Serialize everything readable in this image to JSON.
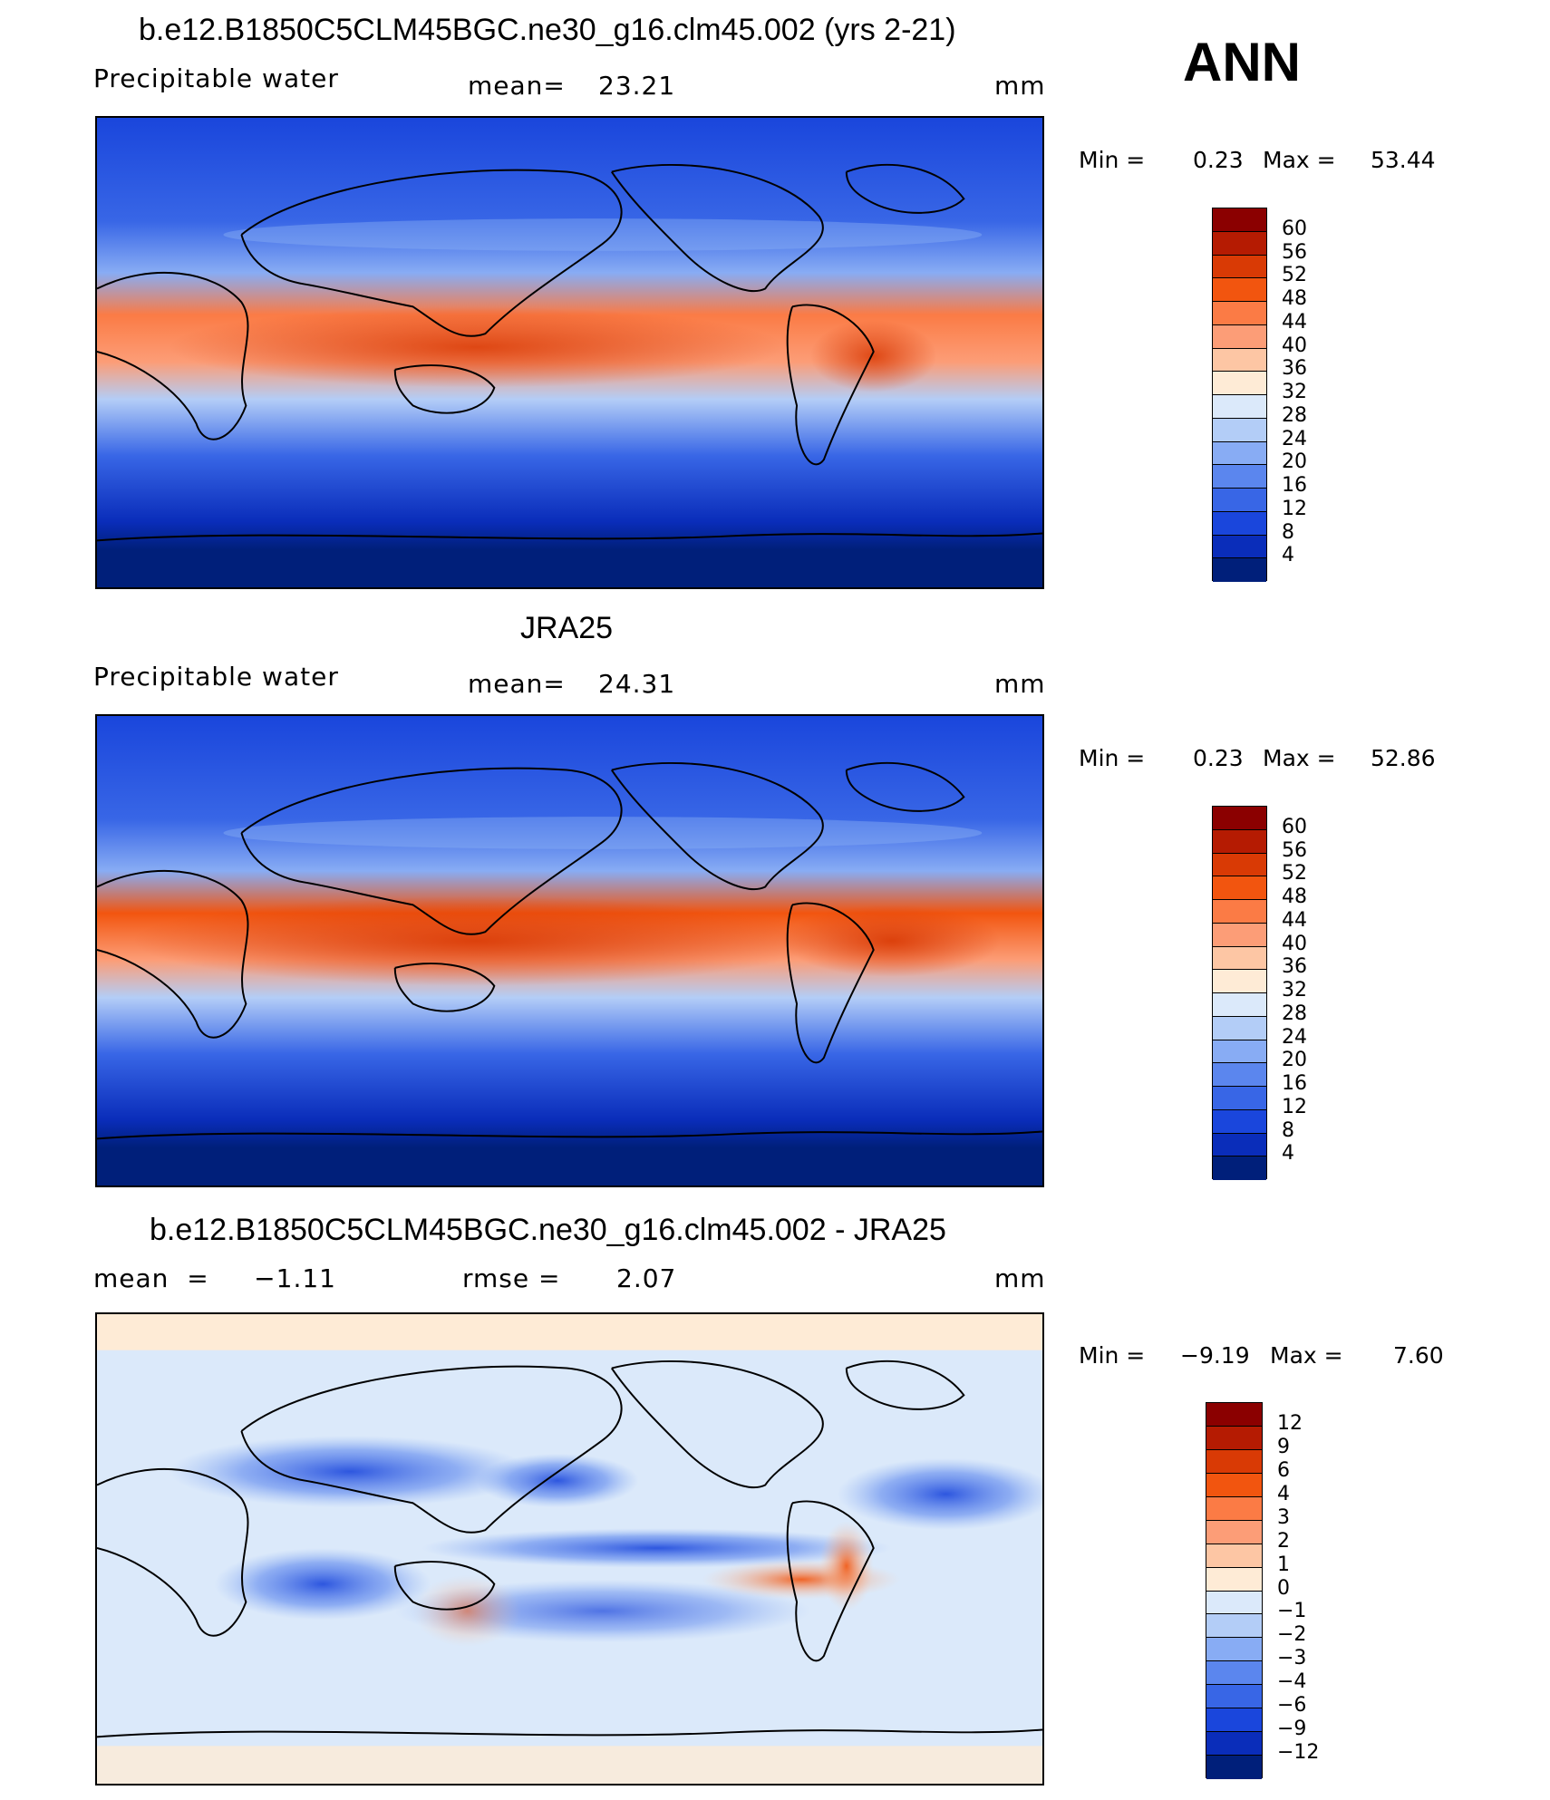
{
  "season": "ANN",
  "panels": [
    {
      "title": "b.e12.B1850C5CLM45BGC.ne30_g16.clm45.002 (yrs 2-21)",
      "left_label": "Precipitable  water",
      "mid_label": "mean=",
      "mid_value": "23.21",
      "unit": "mm",
      "min_label": "Min  =",
      "min_value": "0.23",
      "max_label": "Max  =",
      "max_value": "53.44",
      "colorbar_labels": [
        "60",
        "56",
        "52",
        "48",
        "44",
        "40",
        "36",
        "32",
        "28",
        "24",
        "20",
        "16",
        "12",
        "8",
        "4"
      ],
      "colorbar_colors": [
        "#8b0000",
        "#b51b02",
        "#d93a05",
        "#f2550f",
        "#fb7b45",
        "#fc9d77",
        "#fdc6a4",
        "#feebd6",
        "#dbe9fa",
        "#b3cdf7",
        "#88acf4",
        "#5b86ee",
        "#3866e6",
        "#1a46dc",
        "#0a2dba",
        "#001f7a"
      ]
    },
    {
      "title": "JRA25",
      "left_label": "Precipitable  water",
      "mid_label": "mean=",
      "mid_value": "24.31",
      "unit": "mm",
      "min_label": "Min  =",
      "min_value": "0.23",
      "max_label": "Max  =",
      "max_value": "52.86",
      "colorbar_labels": [
        "60",
        "56",
        "52",
        "48",
        "44",
        "40",
        "36",
        "32",
        "28",
        "24",
        "20",
        "16",
        "12",
        "8",
        "4"
      ],
      "colorbar_colors": [
        "#8b0000",
        "#b51b02",
        "#d93a05",
        "#f2550f",
        "#fb7b45",
        "#fc9d77",
        "#fdc6a4",
        "#feebd6",
        "#dbe9fa",
        "#b3cdf7",
        "#88acf4",
        "#5b86ee",
        "#3866e6",
        "#1a46dc",
        "#0a2dba",
        "#001f7a"
      ]
    },
    {
      "title": "b.e12.B1850C5CLM45BGC.ne30_g16.clm45.002 - JRA25",
      "left_label": "mean  =     −1.11",
      "mid_label": "rmse  =",
      "mid_value": "2.07",
      "unit": "mm",
      "min_label": "Min  =",
      "min_value": "−9.19",
      "max_label": "Max  =",
      "max_value": "7.60",
      "colorbar_labels": [
        "12",
        "9",
        "6",
        "4",
        "3",
        "2",
        "1",
        "0",
        "−1",
        "−2",
        "−3",
        "−4",
        "−6",
        "−9",
        "−12"
      ],
      "colorbar_colors": [
        "#8b0000",
        "#b51b02",
        "#d93a05",
        "#f2550f",
        "#fb7b45",
        "#fc9d77",
        "#fdc6a4",
        "#feebd6",
        "#dbe9fa",
        "#b3cdf7",
        "#88acf4",
        "#5b86ee",
        "#3866e6",
        "#1a46dc",
        "#0a2dba",
        "#001f7a"
      ]
    }
  ]
}
